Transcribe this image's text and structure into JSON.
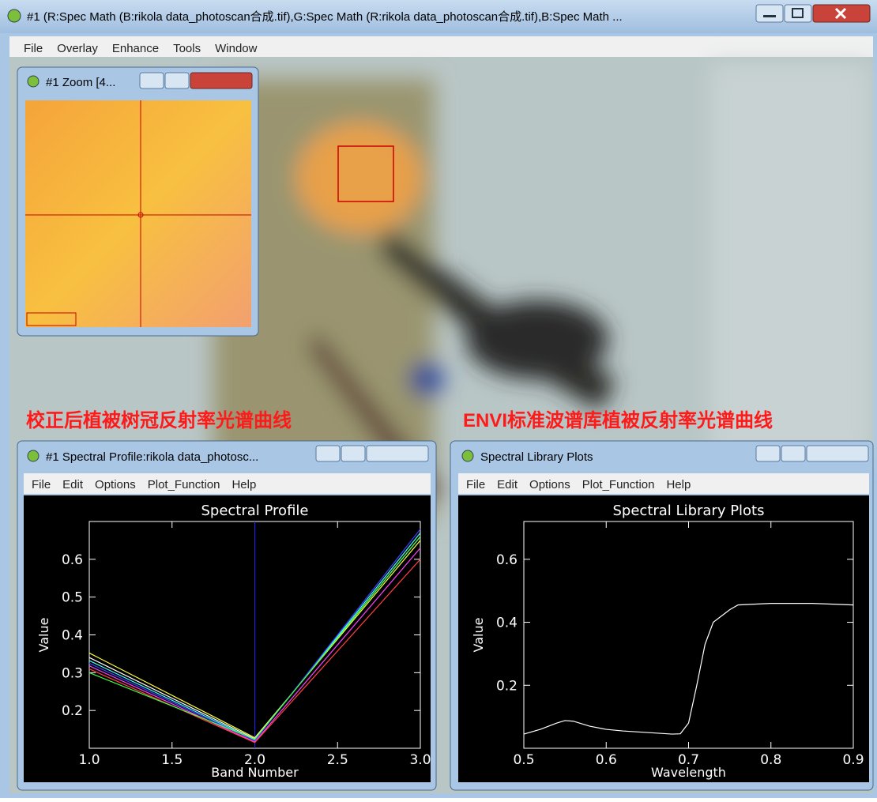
{
  "main_window": {
    "title": "#1 (R:Spec Math (B:rikola data_photoscan合成.tif),G:Spec Math (R:rikola data_photoscan合成.tif),B:Spec Math ...",
    "menu": [
      "File",
      "Overlay",
      "Enhance",
      "Tools",
      "Window"
    ]
  },
  "zoom_window": {
    "title": "#1 Zoom [4..."
  },
  "annotations": [
    "校正后植被树冠反射率光谱曲线",
    "ENVI标准波谱库植被反射率光谱曲线"
  ],
  "profile_window": {
    "title": "#1 Spectral Profile:rikola data_photosc...",
    "menu": [
      "File",
      "Edit",
      "Options",
      "Plot_Function",
      "Help"
    ]
  },
  "library_window": {
    "title": "Spectral Library Plots",
    "menu": [
      "File",
      "Edit",
      "Options",
      "Plot_Function",
      "Help"
    ]
  },
  "chart_data": [
    {
      "type": "line",
      "title": "Spectral Profile",
      "x_label": "Band Number",
      "y_label": "Value",
      "x": [
        1,
        2,
        3
      ],
      "series": [
        {
          "color": "#ffff40",
          "values": [
            0.352,
            0.128,
            0.65
          ]
        },
        {
          "color": "#ffffff",
          "values": [
            0.34,
            0.125,
            0.66
          ]
        },
        {
          "color": "#40ffff",
          "values": [
            0.332,
            0.122,
            0.67
          ]
        },
        {
          "color": "#4040ff",
          "values": [
            0.325,
            0.12,
            0.68
          ]
        },
        {
          "color": "#ff40ff",
          "values": [
            0.318,
            0.117,
            0.63
          ]
        },
        {
          "color": "#ff4040",
          "values": [
            0.31,
            0.115,
            0.6
          ]
        },
        {
          "color": "#40ff40",
          "values": [
            0.3,
            0.124,
            0.66
          ]
        }
      ],
      "band_marker": {
        "value": 2,
        "color": "#2020ff"
      },
      "xlim": [
        1,
        3
      ],
      "ylim": [
        0.1,
        0.7
      ],
      "xticks": [
        {
          "value": 1,
          "label": "1.0"
        },
        1.5,
        {
          "value": 2,
          "label": "2.0"
        },
        2.5,
        {
          "value": 3,
          "label": "3.0"
        }
      ],
      "yticks": [
        0.2,
        0.3,
        0.4,
        0.5,
        0.6
      ]
    },
    {
      "type": "line",
      "title": "Spectral Library Plots",
      "x_label": "Wavelength",
      "y_label": "Value",
      "x": [
        0.5,
        0.52,
        0.54,
        0.55,
        0.56,
        0.58,
        0.6,
        0.62,
        0.65,
        0.68,
        0.69,
        0.7,
        0.71,
        0.72,
        0.73,
        0.75,
        0.76,
        0.8,
        0.85,
        0.9
      ],
      "series": [
        {
          "color": "#ffffff",
          "values": [
            0.045,
            0.06,
            0.08,
            0.088,
            0.086,
            0.07,
            0.06,
            0.055,
            0.05,
            0.045,
            0.046,
            0.08,
            0.2,
            0.33,
            0.4,
            0.44,
            0.455,
            0.46,
            0.46,
            0.455
          ]
        }
      ],
      "xlim": [
        0.5,
        0.9
      ],
      "ylim": [
        0,
        0.72
      ],
      "xticks": [
        0.5,
        0.6,
        0.7,
        0.8,
        0.9
      ],
      "yticks": [
        0.2,
        0.4,
        0.6
      ]
    }
  ]
}
